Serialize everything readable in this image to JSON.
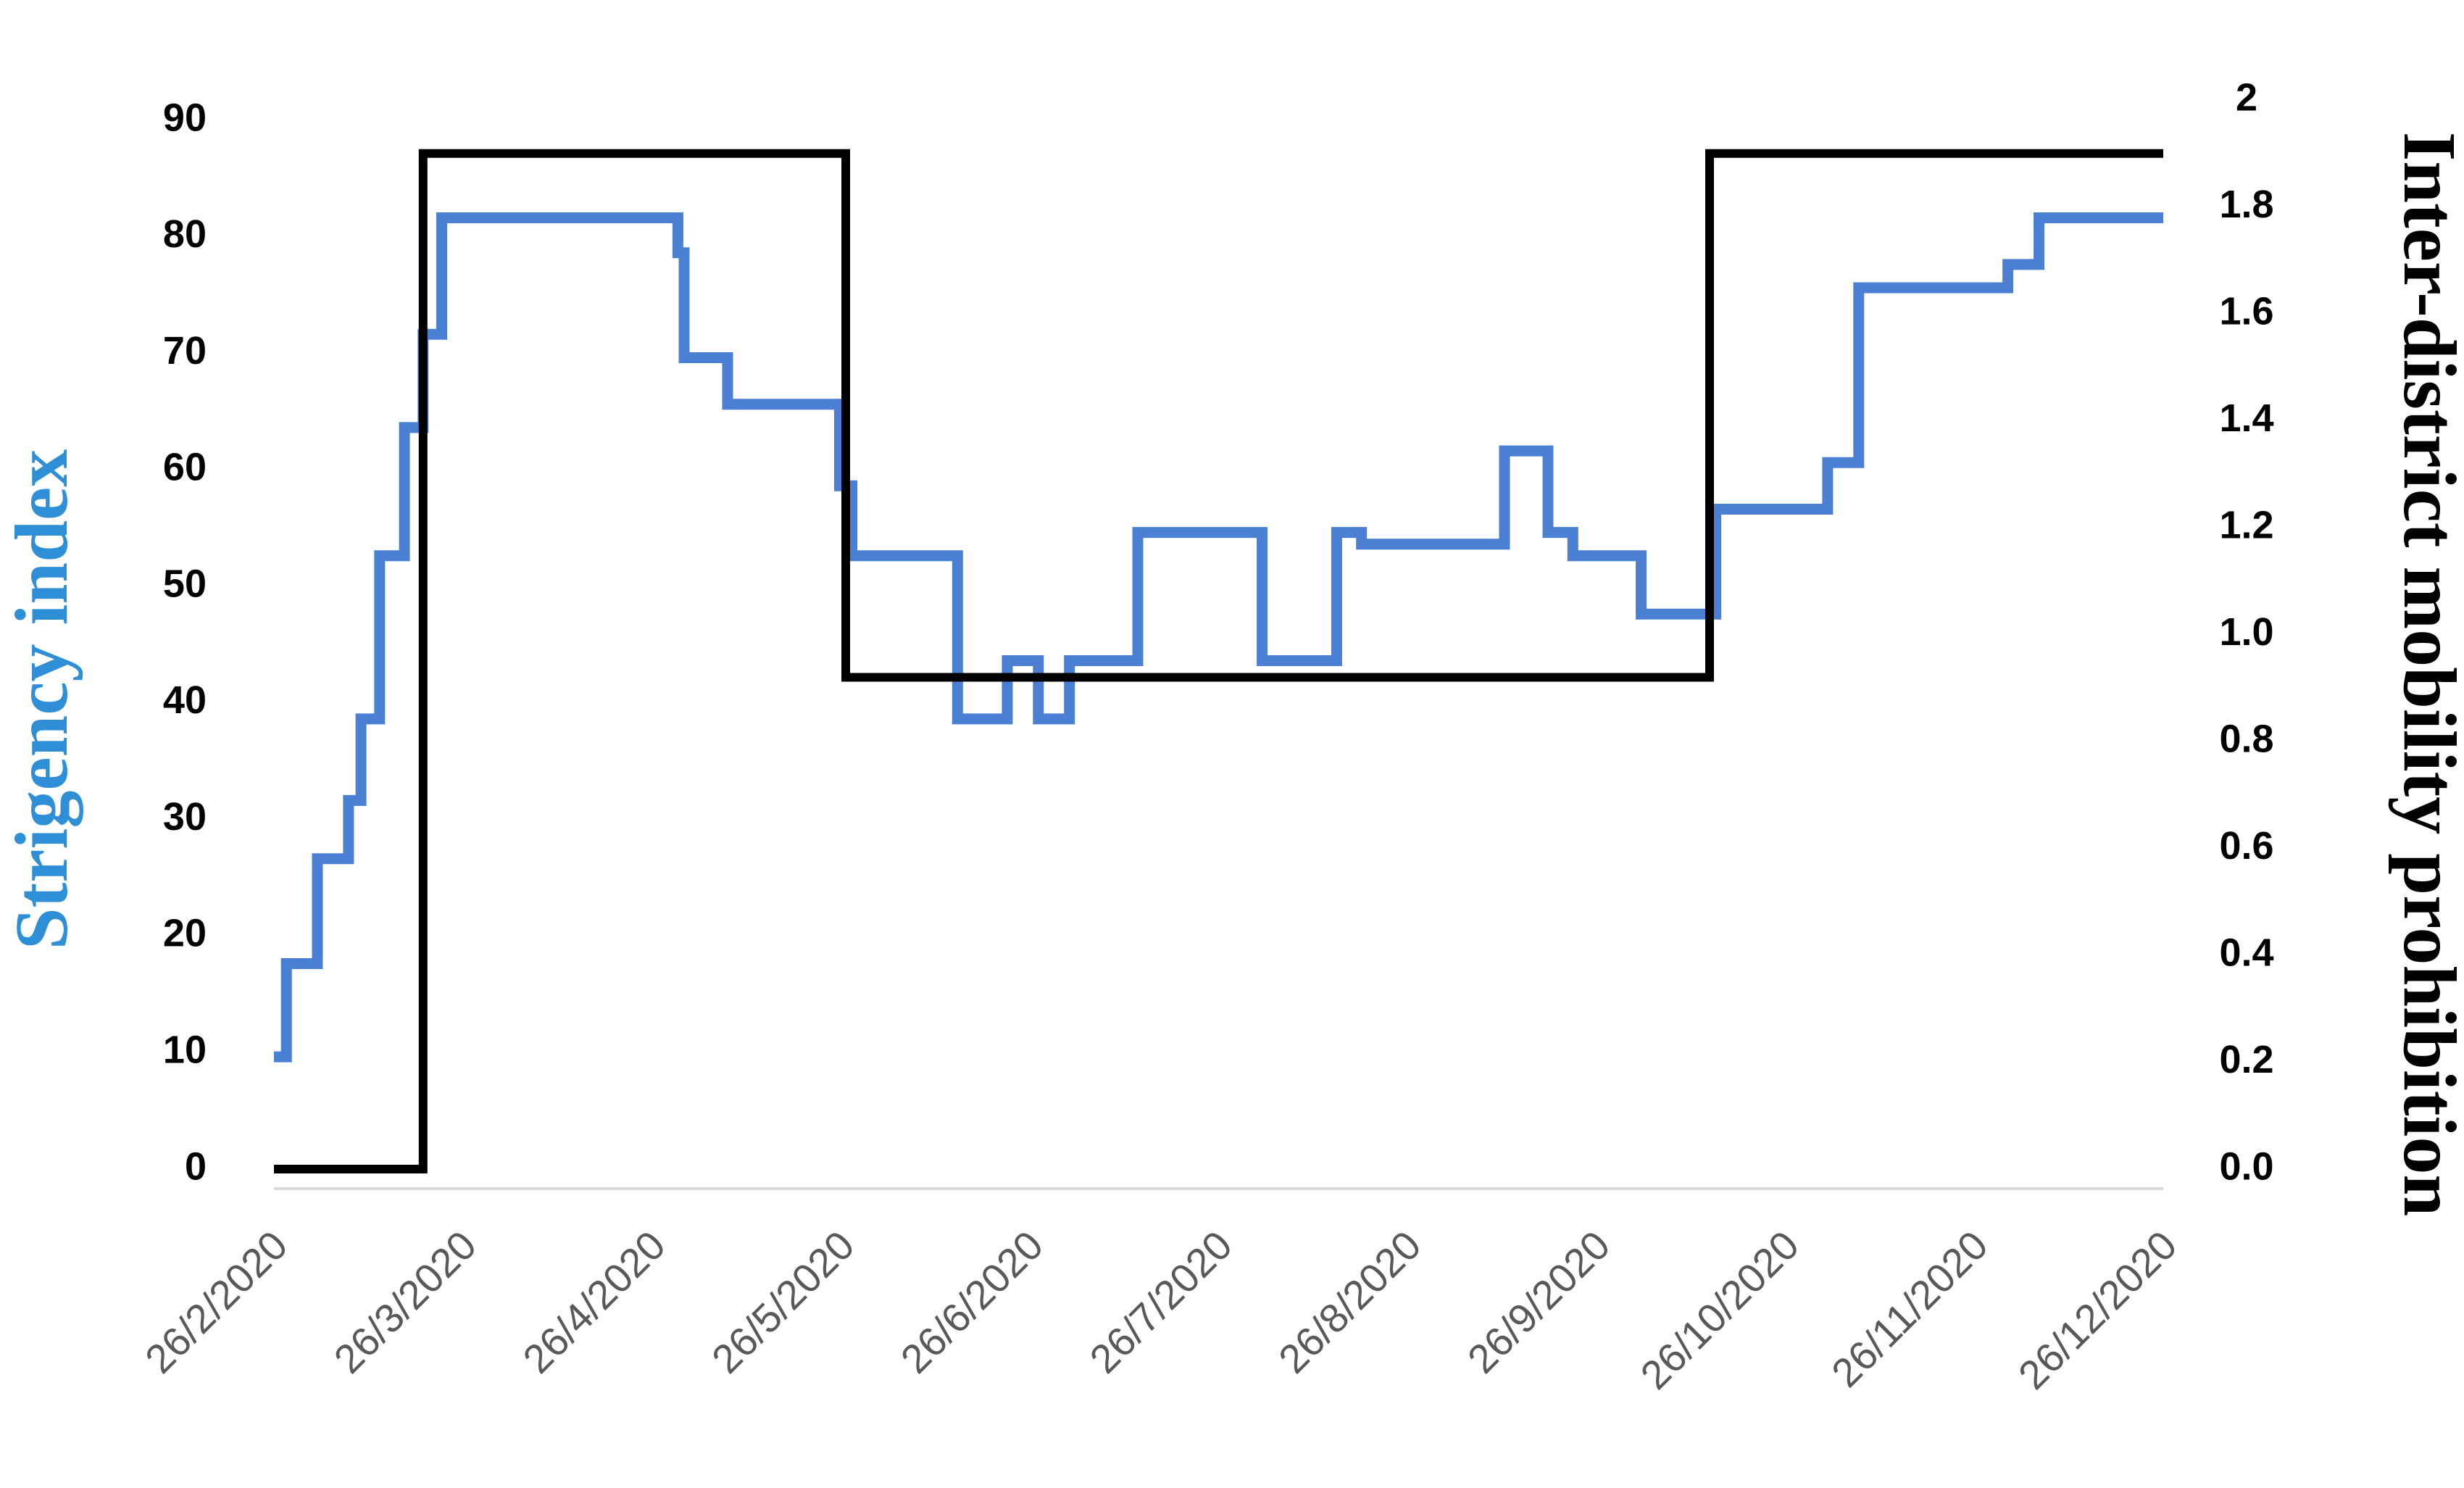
{
  "chart_data": {
    "type": "line",
    "xlabel": "",
    "ylabel_left": "Strigency index",
    "ylabel_right": "Inter-district mobility prohibition",
    "y_left": {
      "min": 0,
      "max": 90,
      "ticks": [
        "0",
        "10",
        "20",
        "30",
        "40",
        "50",
        "60",
        "70",
        "80",
        "90"
      ]
    },
    "y_right": {
      "min": 0,
      "max": 2,
      "ticks": [
        "0.0",
        "0.2",
        "0.4",
        "0.6",
        "0.8",
        "1.0",
        "1.2",
        "1.4",
        "1.6",
        "1.8",
        "2"
      ]
    },
    "x_range": [
      "2020-02-26",
      "2020-12-26"
    ],
    "x_ticks": [
      "26/2/2020",
      "26/3/2020",
      "26/4/2020",
      "26/5/2020",
      "26/6/2020",
      "26/7/2020",
      "26/8/2020",
      "26/9/2020",
      "26/10/2020",
      "26/11/2020",
      "26/12/2020"
    ],
    "grid": false,
    "series": [
      {
        "axis": "left",
        "color": "#4a7fd4",
        "step": true,
        "points": [
          [
            "2020-02-26",
            11
          ],
          [
            "2020-02-28",
            19
          ],
          [
            "2020-03-04",
            28
          ],
          [
            "2020-03-09",
            33
          ],
          [
            "2020-03-11",
            40
          ],
          [
            "2020-03-14",
            54
          ],
          [
            "2020-03-18",
            65
          ],
          [
            "2020-03-21",
            73
          ],
          [
            "2020-03-24",
            83
          ],
          [
            "2020-04-30",
            83
          ],
          [
            "2020-05-01",
            80
          ],
          [
            "2020-05-02",
            71
          ],
          [
            "2020-05-09",
            67
          ],
          [
            "2020-05-27",
            60
          ],
          [
            "2020-05-29",
            54
          ],
          [
            "2020-06-15",
            40
          ],
          [
            "2020-06-23",
            45
          ],
          [
            "2020-06-28",
            40
          ],
          [
            "2020-07-03",
            45
          ],
          [
            "2020-07-14",
            56
          ],
          [
            "2020-08-03",
            45
          ],
          [
            "2020-08-15",
            56
          ],
          [
            "2020-08-19",
            55
          ],
          [
            "2020-09-11",
            63
          ],
          [
            "2020-09-18",
            56
          ],
          [
            "2020-09-22",
            54
          ],
          [
            "2020-10-03",
            49
          ],
          [
            "2020-10-15",
            58
          ],
          [
            "2020-11-02",
            62
          ],
          [
            "2020-11-07",
            77
          ],
          [
            "2020-12-01",
            79
          ],
          [
            "2020-12-06",
            83
          ],
          [
            "2020-12-26",
            83
          ]
        ]
      },
      {
        "axis": "right",
        "color": "#000000",
        "step": true,
        "points": [
          [
            "2020-02-26",
            0
          ],
          [
            "2020-03-21",
            1.9
          ],
          [
            "2020-05-28",
            0.92
          ],
          [
            "2020-10-14",
            1.9
          ],
          [
            "2020-12-26",
            1.9
          ]
        ]
      }
    ]
  }
}
